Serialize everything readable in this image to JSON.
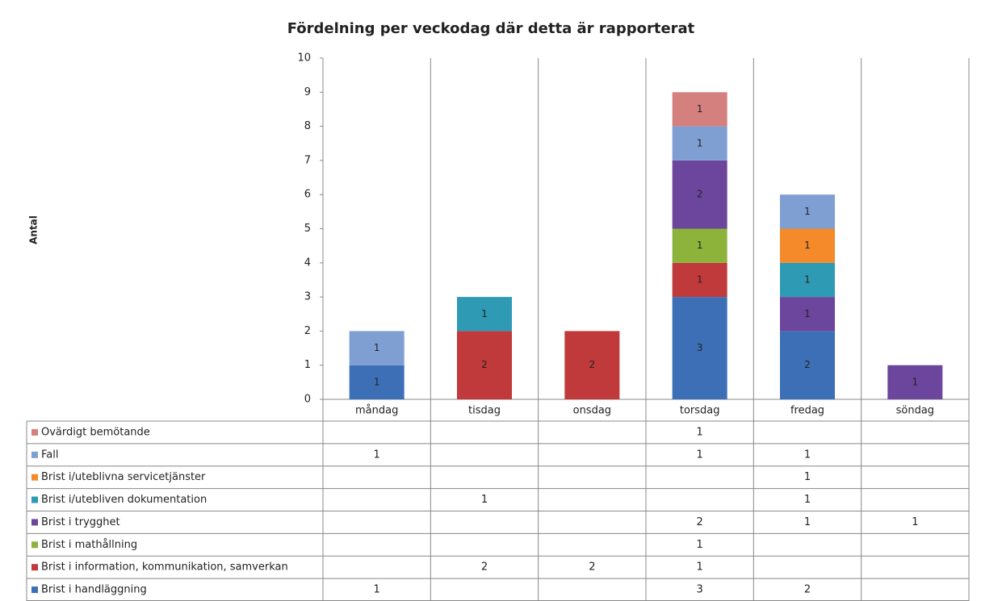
{
  "chart_data": {
    "type": "stacked_bar",
    "title": "Fördelning per veckodag där detta är rapporterat",
    "y_label": "Antal",
    "categories": [
      "måndag",
      "tisdag",
      "onsdag",
      "torsdag",
      "fredag",
      "söndag"
    ],
    "series": [
      {
        "name": "Brist i handläggning",
        "color": "#3d6fb6",
        "values": [
          1,
          null,
          null,
          3,
          2,
          null
        ]
      },
      {
        "name": "Brist i information, kommunikation, samverkan",
        "color": "#c0393b",
        "values": [
          null,
          2,
          2,
          1,
          null,
          null
        ]
      },
      {
        "name": "Brist i mathållning",
        "color": "#8db33a",
        "values": [
          null,
          null,
          null,
          1,
          null,
          null
        ]
      },
      {
        "name": "Brist i trygghet",
        "color": "#6c469c",
        "values": [
          null,
          null,
          null,
          2,
          1,
          1
        ]
      },
      {
        "name": "Brist i/utebliven dokumentation",
        "color": "#2e9ab4",
        "values": [
          null,
          1,
          null,
          null,
          1,
          null
        ]
      },
      {
        "name": "Brist i/uteblivna servicetjänster",
        "color": "#f58a2a",
        "values": [
          null,
          null,
          null,
          null,
          1,
          null
        ]
      },
      {
        "name": "Fall",
        "color": "#7f9fd3",
        "values": [
          1,
          null,
          null,
          1,
          1,
          null
        ]
      },
      {
        "name": "Ovärdigt bemötande",
        "color": "#d4807e",
        "values": [
          null,
          null,
          null,
          1,
          null,
          null
        ]
      }
    ],
    "ylim": [
      0,
      10
    ],
    "yticks": [
      0,
      1,
      2,
      3,
      4,
      5,
      6,
      7,
      8,
      9,
      10
    ],
    "grid": "vertical"
  }
}
